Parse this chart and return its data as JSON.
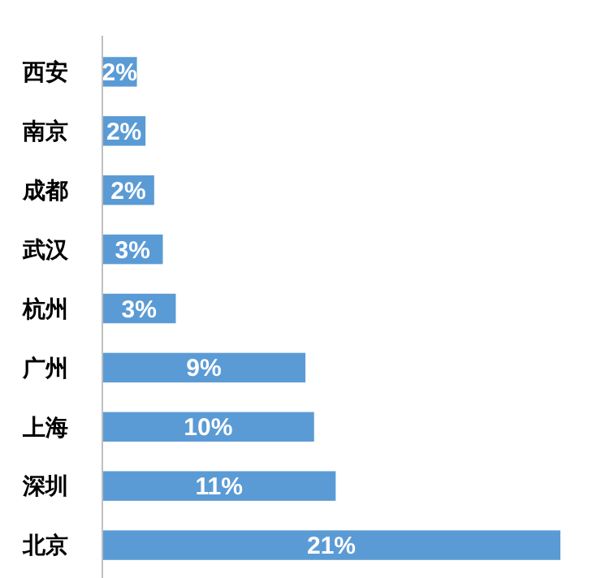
{
  "chart_data": {
    "type": "bar",
    "orientation": "horizontal",
    "categories": [
      "西安",
      "南京",
      "成都",
      "武汉",
      "杭州",
      "广州",
      "上海",
      "深圳",
      "北京"
    ],
    "values": [
      1.6,
      2.0,
      2.4,
      2.8,
      3.4,
      9.4,
      9.8,
      10.8,
      21.2
    ],
    "value_labels": [
      "2%",
      "2%",
      "2%",
      "3%",
      "3%",
      "9%",
      "10%",
      "11%",
      "21%"
    ],
    "color": "#5b9bd5"
  }
}
